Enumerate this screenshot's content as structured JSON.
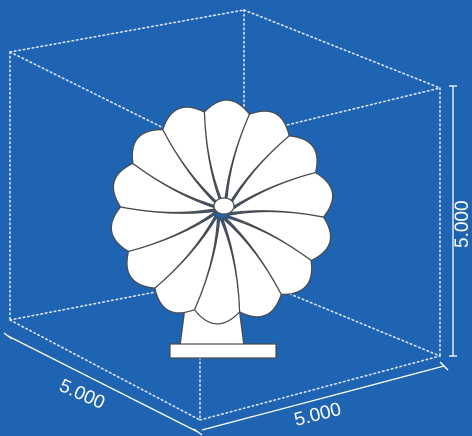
{
  "dimensions": {
    "width_label": "5.000",
    "depth_label": "5.000",
    "height_label": "5.000"
  },
  "colors": {
    "background": "#1f63b3",
    "model_fill": "#ffffff",
    "model_stroke": "#4a4a4a",
    "box_edge": "#d9e6f5"
  }
}
